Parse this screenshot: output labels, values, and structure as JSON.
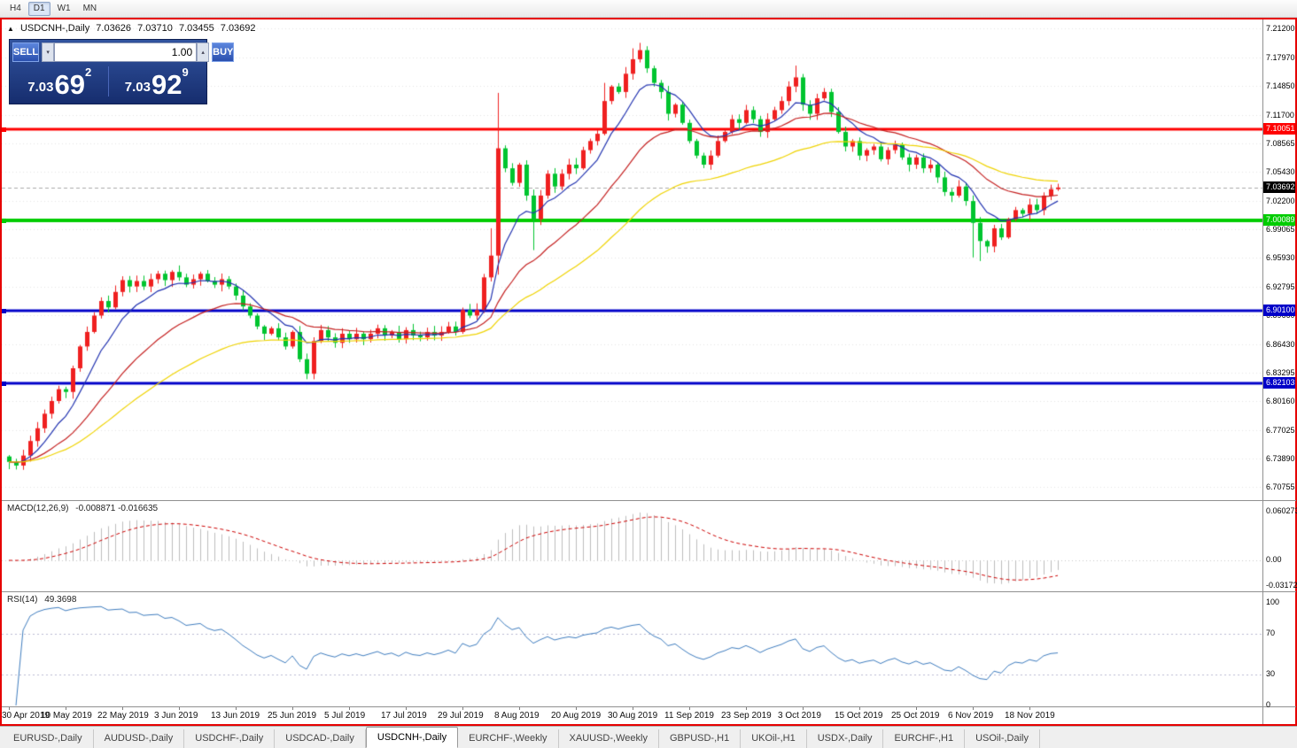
{
  "toolbar": {
    "timeframes": [
      {
        "label": "H4",
        "active": false
      },
      {
        "label": "D1",
        "active": true
      },
      {
        "label": "W1",
        "active": false
      },
      {
        "label": "MN",
        "active": false
      }
    ]
  },
  "icons": {
    "collapse": "▲",
    "spin_up": "▴",
    "spin_down": "▾"
  },
  "chart_header": {
    "symbol": "USDCNH-,Daily",
    "open": "7.03626",
    "high": "7.03710",
    "low": "7.03455",
    "close": "7.03692"
  },
  "trade_panel": {
    "sell_label": "SELL",
    "buy_label": "BUY",
    "volume": "1.00",
    "sell_price": {
      "prefix": "7.03",
      "big": "69",
      "sup": "2"
    },
    "buy_price": {
      "prefix": "7.03",
      "big": "92",
      "sup": "9"
    }
  },
  "chart_data": {
    "type": "candlestick",
    "symbol": "USDCNH-",
    "timeframe": "Daily",
    "title": "USDCNH-,Daily 7.03626 7.03710 7.03455 7.03692",
    "ylim": [
      6.70755,
      7.212
    ],
    "y_ticks": [
      "7.21200",
      "7.17970",
      "7.14850",
      "7.11700",
      "7.08565",
      "7.05430",
      "7.02200",
      "6.99065",
      "6.95930",
      "6.92795",
      "6.89660",
      "6.86430",
      "6.83295",
      "6.80160",
      "6.77025",
      "6.73890",
      "6.70755"
    ],
    "x_labels": [
      "30 Apr 2019",
      "10 May 2019",
      "22 May 2019",
      "3 Jun 2019",
      "13 Jun 2019",
      "25 Jun 2019",
      "5 Jul 2019",
      "17 Jul 2019",
      "29 Jul 2019",
      "8 Aug 2019",
      "20 Aug 2019",
      "30 Aug 2019",
      "11 Sep 2019",
      "23 Sep 2019",
      "3 Oct 2019",
      "15 Oct 2019",
      "25 Oct 2019",
      "6 Nov 2019",
      "18 Nov 2019"
    ],
    "x_label_indices": [
      0,
      8,
      16,
      24,
      32,
      40,
      48,
      56,
      64,
      72,
      80,
      88,
      96,
      104,
      112,
      120,
      128,
      136,
      144
    ],
    "closes": [
      6.735,
      6.731,
      6.742,
      6.758,
      6.772,
      6.788,
      6.802,
      6.815,
      6.812,
      6.838,
      6.862,
      6.878,
      6.896,
      6.912,
      6.905,
      6.922,
      6.935,
      6.928,
      6.934,
      6.928,
      6.936,
      6.942,
      6.935,
      6.944,
      6.938,
      6.93,
      6.936,
      6.942,
      6.934,
      6.93,
      6.936,
      6.928,
      6.918,
      6.906,
      6.896,
      6.884,
      6.876,
      6.882,
      6.872,
      6.862,
      6.878,
      6.848,
      6.832,
      6.868,
      6.88,
      6.872,
      6.866,
      6.876,
      6.87,
      6.876,
      6.87,
      6.876,
      6.882,
      6.874,
      6.878,
      6.87,
      6.88,
      6.874,
      6.872,
      6.878,
      6.874,
      6.878,
      6.884,
      6.878,
      6.902,
      6.896,
      6.902,
      6.938,
      6.962,
      7.08,
      7.058,
      7.042,
      7.062,
      7.028,
      7.002,
      7.028,
      7.052,
      7.038,
      7.052,
      7.062,
      7.058,
      7.078,
      7.088,
      7.096,
      7.132,
      7.148,
      7.142,
      7.162,
      7.178,
      7.188,
      7.168,
      7.152,
      7.142,
      7.118,
      7.128,
      7.108,
      7.088,
      7.072,
      7.062,
      7.072,
      7.088,
      7.098,
      7.112,
      7.108,
      7.122,
      7.112,
      7.098,
      7.112,
      7.122,
      7.132,
      7.148,
      7.158,
      7.128,
      7.118,
      7.135,
      7.142,
      7.12,
      7.098,
      7.082,
      7.088,
      7.072,
      7.078,
      7.082,
      7.068,
      7.078,
      7.084,
      7.07,
      7.062,
      7.07,
      7.058,
      7.062,
      7.048,
      7.032,
      7.028,
      7.038,
      7.022,
      6.998,
      6.978,
      6.972,
      6.992,
      6.982,
      7.002,
      7.012,
      7.008,
      7.018,
      7.012,
      7.028,
      7.035,
      7.03692
    ],
    "wick_overrides": {
      "0": {
        "l": 6.727
      },
      "42": {
        "l": 6.826
      },
      "68": {
        "h": 6.992
      },
      "69": {
        "h": 7.141,
        "l": 6.941
      },
      "74": {
        "l": 6.968
      },
      "84": {
        "h": 7.152
      },
      "88": {
        "h": 7.19
      },
      "89": {
        "h": 7.196
      },
      "111": {
        "h": 7.171
      },
      "136": {
        "l": 6.96
      },
      "137": {
        "l": 6.956
      }
    },
    "up_color": "#EF2020",
    "down_color": "#00C42F",
    "grid_color": "#E4E4E4",
    "hlines": [
      {
        "price": 7.10051,
        "color": "#FF0000",
        "label": "7.10051",
        "width": 3
      },
      {
        "price": 7.00089,
        "color": "#00CC00",
        "label": "7.00089",
        "width": 4
      },
      {
        "price": 6.901,
        "color": "#0000C8",
        "label": "6.90100",
        "width": 3
      },
      {
        "price": 6.82103,
        "color": "#0000C8",
        "label": "6.82103",
        "width": 3
      }
    ],
    "last_price": {
      "value": 7.03692,
      "label": "7.03692",
      "badge_color": "#000000"
    },
    "moving_averages": [
      {
        "period": 8,
        "color": "#2233B0"
      },
      {
        "period": 22,
        "color": "#C42020"
      },
      {
        "period": 45,
        "color": "#EFD302"
      }
    ],
    "indicators": [
      {
        "name": "MACD",
        "label": "MACD(12,26,9)",
        "values": "-0.008871 -0.016635",
        "params": [
          12,
          26,
          9
        ],
        "ylim": [
          -0.031725,
          0.060273
        ],
        "y_ticks": [
          "0.060273",
          "0.00",
          "-0.031725"
        ],
        "hist_color": "#BDBDBD",
        "signal_color": "#CC0000"
      },
      {
        "name": "RSI",
        "label": "RSI(14)",
        "value": "49.3698",
        "period": 14,
        "ylim": [
          0,
          100
        ],
        "y_ticks": [
          "100",
          "70",
          "30",
          "0"
        ],
        "levels": [
          70,
          30
        ],
        "line_color": "#3E7CBE",
        "level_color": "#B9B9D2"
      }
    ]
  },
  "tab_bar": {
    "tabs": [
      {
        "label": "EURUSD-,Daily",
        "active": false
      },
      {
        "label": "AUDUSD-,Daily",
        "active": false
      },
      {
        "label": "USDCHF-,Daily",
        "active": false
      },
      {
        "label": "USDCAD-,Daily",
        "active": false
      },
      {
        "label": "USDCNH-,Daily",
        "active": true
      },
      {
        "label": "EURCHF-,Weekly",
        "active": false
      },
      {
        "label": "XAUUSD-,Weekly",
        "active": false
      },
      {
        "label": "GBPUSD-,H1",
        "active": false
      },
      {
        "label": "UKOil-,H1",
        "active": false
      },
      {
        "label": "USDX-,Daily",
        "active": false
      },
      {
        "label": "EURCHF-,H1",
        "active": false
      },
      {
        "label": "USOil-,Daily",
        "active": false
      }
    ]
  }
}
